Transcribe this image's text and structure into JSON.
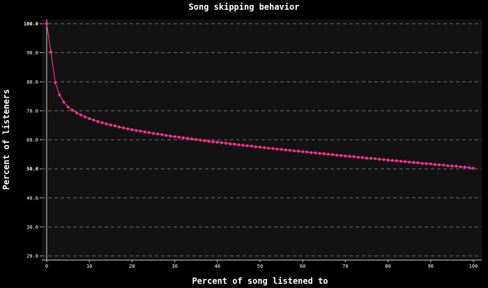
{
  "chart_data": {
    "type": "line",
    "title": "Song skipping behavior",
    "xlabel": "Percent of song listened to",
    "ylabel": "Percent of listeners",
    "xlim": [
      0,
      100
    ],
    "ylim": [
      20,
      100
    ],
    "xticks": [
      0,
      10,
      20,
      30,
      40,
      50,
      60,
      70,
      80,
      90,
      100
    ],
    "yticks": [
      20,
      30,
      40,
      50,
      60,
      70,
      80,
      90,
      100
    ],
    "xtick_labels": [
      "0",
      "10",
      "20",
      "30",
      "40",
      "50",
      "60",
      "70",
      "80",
      "90",
      "100"
    ],
    "ytick_labels": [
      "20.0",
      "30.0",
      "40.0",
      "50.0",
      "60.0",
      "70.0",
      "80.0",
      "90.0",
      "100.0"
    ],
    "highlighted_yticks": [
      50,
      100
    ],
    "grid": "horizontal-dashed",
    "colors": {
      "background": "#000000",
      "plot_background": "#121212",
      "grid": "#8a8a8a",
      "axis": "#d0d0d0",
      "text": "#ffffff",
      "series": "#ff2f8c"
    },
    "series": [
      {
        "name": "",
        "x": [
          0,
          1,
          2,
          3,
          4,
          5,
          6,
          7,
          8,
          9,
          10,
          11,
          12,
          13,
          14,
          15,
          16,
          17,
          18,
          19,
          20,
          21,
          22,
          23,
          24,
          25,
          26,
          27,
          28,
          29,
          30,
          31,
          32,
          33,
          34,
          35,
          36,
          37,
          38,
          39,
          40,
          41,
          42,
          43,
          44,
          45,
          46,
          47,
          48,
          49,
          50,
          51,
          52,
          53,
          54,
          55,
          56,
          57,
          58,
          59,
          60,
          61,
          62,
          63,
          64,
          65,
          66,
          67,
          68,
          69,
          70,
          71,
          72,
          73,
          74,
          75,
          76,
          77,
          78,
          79,
          80,
          81,
          82,
          83,
          84,
          85,
          86,
          87,
          88,
          89,
          90,
          91,
          92,
          93,
          94,
          95,
          96,
          97,
          98,
          99,
          100
        ],
        "y": [
          100.0,
          90.2,
          79.7,
          75.5,
          73.0,
          71.3,
          70.2,
          69.3,
          68.6,
          67.9,
          67.3,
          66.8,
          66.3,
          65.9,
          65.5,
          65.1,
          64.8,
          64.4,
          64.1,
          63.8,
          63.5,
          63.2,
          63.0,
          62.7,
          62.5,
          62.2,
          62.0,
          61.8,
          61.5,
          61.3,
          61.1,
          60.9,
          60.7,
          60.5,
          60.3,
          60.1,
          59.9,
          59.7,
          59.5,
          59.3,
          59.2,
          59.0,
          58.8,
          58.6,
          58.5,
          58.3,
          58.1,
          58.0,
          57.8,
          57.6,
          57.5,
          57.3,
          57.1,
          57.0,
          56.8,
          56.7,
          56.5,
          56.4,
          56.2,
          56.1,
          55.9,
          55.8,
          55.6,
          55.5,
          55.3,
          55.2,
          55.0,
          54.9,
          54.7,
          54.6,
          54.4,
          54.3,
          54.2,
          54.0,
          53.9,
          53.7,
          53.6,
          53.5,
          53.3,
          53.2,
          53.0,
          52.9,
          52.8,
          52.6,
          52.5,
          52.3,
          52.2,
          52.1,
          51.9,
          51.8,
          51.7,
          51.5,
          51.4,
          51.3,
          51.1,
          51.0,
          50.9,
          50.7,
          50.6,
          50.4,
          50.2
        ]
      }
    ]
  }
}
